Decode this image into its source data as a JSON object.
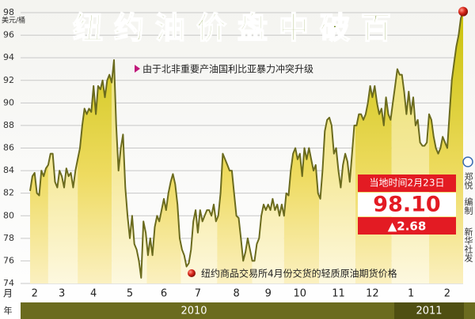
{
  "chart_data": {
    "type": "area",
    "title": "纽约油价盘中破百",
    "y_unit": "美元/桶",
    "x_axis_label": "月",
    "year_axis_label": "年",
    "year_labels": [
      "2010",
      "2011"
    ],
    "annotation": "由于北非重要产油国利比亚暴力冲突升级",
    "callout": {
      "date": "当地时间2月23日",
      "price": "98.10",
      "change": "▲2.68"
    },
    "legend": "纽约商品交易所4月份交货的轻质原油期货价格",
    "credits": [
      "郑悦",
      "编制",
      "新华社发"
    ],
    "line_color": "#6b6b1e",
    "grid": true,
    "ylim": [
      74,
      98
    ],
    "yticks": [
      74,
      76,
      78,
      80,
      82,
      84,
      86,
      88,
      90,
      92,
      94,
      96,
      98
    ],
    "xlim": [
      0,
      191
    ],
    "xticks": [
      {
        "value": 2,
        "label": "2"
      },
      {
        "value": 14,
        "label": "3"
      },
      {
        "value": 28,
        "label": "4"
      },
      {
        "value": 44,
        "label": "5"
      },
      {
        "value": 59,
        "label": "6"
      },
      {
        "value": 74,
        "label": "7"
      },
      {
        "value": 91,
        "label": "8"
      },
      {
        "value": 105,
        "label": "9"
      },
      {
        "value": 119,
        "label": "10"
      },
      {
        "value": 136,
        "label": "11"
      },
      {
        "value": 151,
        "label": "12"
      },
      {
        "value": 168,
        "label": "1"
      },
      {
        "value": 184,
        "label": "2"
      }
    ],
    "values": [
      82.2,
      83.5,
      83.8,
      82,
      81.8,
      84,
      83.5,
      84.2,
      84.5,
      85.5,
      85.5,
      83,
      82.5,
      84,
      83.5,
      82.5,
      84.2,
      83.5,
      83.8,
      82.5,
      84,
      85,
      86,
      88,
      89.5,
      89,
      89.5,
      89.2,
      91.5,
      89,
      91.5,
      91.2,
      92,
      90.5,
      92,
      92.5,
      91.8,
      93.8,
      88,
      84,
      86,
      87.2,
      82.5,
      80,
      78,
      80,
      77.5,
      77,
      76,
      74.5,
      79.5,
      78.5,
      76.5,
      78,
      76.5,
      79,
      80,
      79.5,
      80.5,
      81.5,
      80.5,
      82,
      83,
      83.7,
      82.8,
      81,
      78,
      77,
      76.5,
      75.5,
      75.8,
      77,
      79.5,
      80.5,
      78.5,
      80.5,
      79.5,
      80,
      80.5,
      80.5,
      80,
      81,
      79.5,
      80,
      82,
      85.5,
      85,
      84.5,
      84,
      84,
      82,
      80,
      79.8,
      78,
      76,
      76.8,
      78,
      77,
      76,
      76,
      77.5,
      78,
      80,
      81,
      80.5,
      81,
      80.5,
      81.5,
      80.5,
      81,
      80,
      81,
      80,
      82,
      81.8,
      84,
      85.5,
      86,
      85,
      85.5,
      83.5,
      86,
      85,
      86,
      85,
      84,
      84.5,
      82,
      81.5,
      84,
      87.5,
      88.5,
      88.7,
      88,
      85.5,
      86,
      84,
      82.5,
      84.5,
      85.5,
      84.8,
      83,
      85.5,
      88,
      88,
      89,
      89,
      88.5,
      89,
      90,
      91.5,
      90.5,
      91.5,
      90,
      89,
      89.5,
      88,
      90.5,
      89,
      88.5,
      90,
      91.5,
      93,
      92.5,
      92.5,
      91,
      89,
      91,
      89,
      90.5,
      88,
      88.5,
      86.5,
      86.2,
      86.2,
      86.5,
      89,
      88.5,
      87,
      86,
      85.5,
      86,
      87,
      86.5,
      86,
      89,
      92,
      93.5,
      95,
      96,
      97.5,
      98.1
    ]
  }
}
